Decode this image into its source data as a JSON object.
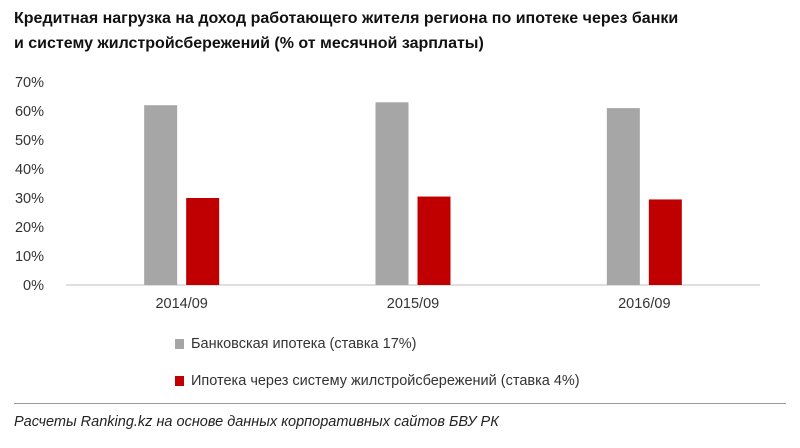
{
  "chart_data": {
    "type": "bar",
    "title_lines": [
      "Кредитная нагрузка на доход работающего жителя региона по ипотеке через банки",
      "и систему жилстройсбережений (% от месячной зарплаты)"
    ],
    "categories": [
      "2014/09",
      "2015/09",
      "2016/09"
    ],
    "series": [
      {
        "name": "Банковская ипотека (ставка 17%)",
        "color": "#a6a6a6",
        "values": [
          62,
          63,
          61
        ]
      },
      {
        "name": "Ипотека через систему жилстройсбережений (ставка 4%)",
        "color": "#c00000",
        "values": [
          30,
          30.5,
          29.5
        ]
      }
    ],
    "ylim": [
      0,
      70
    ],
    "yticks": [
      0,
      10,
      20,
      30,
      40,
      50,
      60,
      70
    ],
    "ytick_labels": [
      "0%",
      "10%",
      "20%",
      "30%",
      "40%",
      "50%",
      "60%",
      "70%"
    ],
    "xlabel": "",
    "ylabel": "",
    "grid": false,
    "legend_position": "bottom"
  },
  "source": "Расчеты Ranking.kz на основе данных корпоративных сайтов БВУ РК"
}
